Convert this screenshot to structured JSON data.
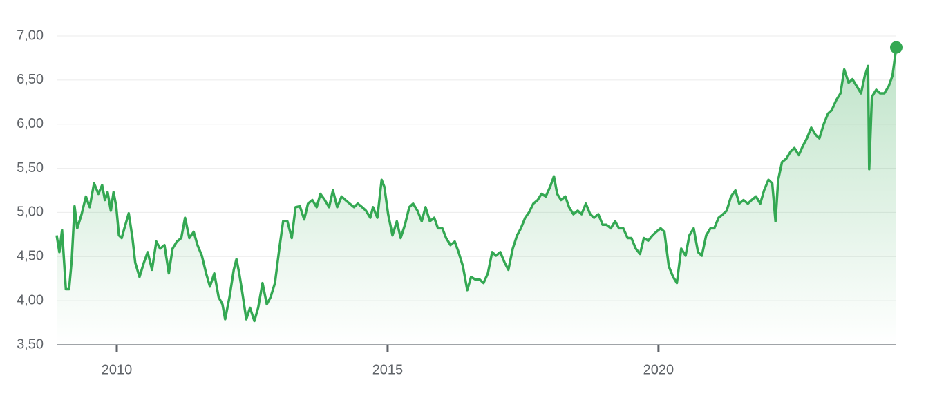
{
  "chart_data": {
    "type": "line",
    "color": "#34a853",
    "grid": true,
    "area": true,
    "xlim": [
      2008.89,
      2024.39
    ],
    "xticks": [
      2010,
      2015,
      2020
    ],
    "ylim": [
      3.5,
      7
    ],
    "yticks": [
      {
        "value": 3.5,
        "label": "3,50"
      },
      {
        "value": 4,
        "label": "4,00"
      },
      {
        "value": 4.5,
        "label": "4,50"
      },
      {
        "value": 5,
        "label": "5,00"
      },
      {
        "value": 5.5,
        "label": "5,50"
      },
      {
        "value": 6,
        "label": "6,00"
      },
      {
        "value": 6.5,
        "label": "6,50"
      },
      {
        "value": 7,
        "label": "7,00"
      }
    ],
    "x": [
      2008.89,
      2008.94,
      2008.99,
      2009.06,
      2009.12,
      2009.17,
      2009.22,
      2009.27,
      2009.35,
      2009.43,
      2009.5,
      2009.58,
      2009.66,
      2009.73,
      2009.78,
      2009.83,
      2009.89,
      2009.94,
      2009.99,
      2010.04,
      2010.09,
      2010.14,
      2010.22,
      2010.29,
      2010.34,
      2010.42,
      2010.5,
      2010.57,
      2010.65,
      2010.73,
      2010.8,
      2010.88,
      2010.96,
      2011.03,
      2011.11,
      2011.19,
      2011.26,
      2011.34,
      2011.42,
      2011.49,
      2011.57,
      2011.65,
      2011.72,
      2011.8,
      2011.88,
      2011.95,
      2012.0,
      2012.08,
      2012.16,
      2012.21,
      2012.26,
      2012.31,
      2012.39,
      2012.46,
      2012.54,
      2012.61,
      2012.69,
      2012.77,
      2012.84,
      2012.92,
      2013.0,
      2013.07,
      2013.15,
      2013.23,
      2013.3,
      2013.38,
      2013.46,
      2013.53,
      2013.61,
      2013.69,
      2013.76,
      2013.84,
      2013.92,
      2013.99,
      2014.07,
      2014.15,
      2014.22,
      2014.3,
      2014.38,
      2014.45,
      2014.53,
      2014.6,
      2014.68,
      2014.73,
      2014.81,
      2014.89,
      2014.94,
      2015.01,
      2015.09,
      2015.17,
      2015.24,
      2015.32,
      2015.4,
      2015.47,
      2015.55,
      2015.63,
      2015.7,
      2015.78,
      2015.86,
      2015.93,
      2016.01,
      2016.08,
      2016.16,
      2016.24,
      2016.31,
      2016.39,
      2016.47,
      2016.54,
      2016.62,
      2016.7,
      2016.77,
      2016.85,
      2016.93,
      2017.0,
      2017.08,
      2017.16,
      2017.23,
      2017.31,
      2017.39,
      2017.46,
      2017.54,
      2017.61,
      2017.69,
      2017.77,
      2017.84,
      2017.92,
      2018.0,
      2018.07,
      2018.13,
      2018.2,
      2018.28,
      2018.35,
      2018.43,
      2018.51,
      2018.58,
      2018.66,
      2018.74,
      2018.81,
      2018.89,
      2018.97,
      2019.04,
      2019.12,
      2019.2,
      2019.27,
      2019.35,
      2019.43,
      2019.5,
      2019.58,
      2019.66,
      2019.73,
      2019.81,
      2019.89,
      2019.96,
      2020.04,
      2020.11,
      2020.19,
      2020.27,
      2020.34,
      2020.42,
      2020.5,
      2020.57,
      2020.65,
      2020.73,
      2020.8,
      2020.88,
      2020.96,
      2021.03,
      2021.11,
      2021.19,
      2021.26,
      2021.34,
      2021.42,
      2021.49,
      2021.57,
      2021.65,
      2021.72,
      2021.8,
      2021.88,
      2021.95,
      2022.03,
      2022.1,
      2022.16,
      2022.21,
      2022.28,
      2022.36,
      2022.44,
      2022.51,
      2022.59,
      2022.67,
      2022.74,
      2022.82,
      2022.9,
      2022.97,
      2023.05,
      2023.13,
      2023.2,
      2023.28,
      2023.36,
      2023.43,
      2023.51,
      2023.58,
      2023.66,
      2023.74,
      2023.81,
      2023.87,
      2023.89,
      2023.94,
      2024.02,
      2024.09,
      2024.17,
      2024.25,
      2024.32,
      2024.39
    ],
    "values": [
      4.74,
      4.55,
      4.8,
      4.13,
      4.13,
      4.47,
      5.07,
      4.82,
      4.98,
      5.18,
      5.06,
      5.33,
      5.21,
      5.31,
      5.14,
      5.23,
      5.02,
      5.23,
      5.07,
      4.74,
      4.71,
      4.82,
      4.99,
      4.71,
      4.43,
      4.27,
      4.43,
      4.55,
      4.35,
      4.67,
      4.59,
      4.63,
      4.31,
      4.59,
      4.67,
      4.71,
      4.94,
      4.71,
      4.78,
      4.63,
      4.51,
      4.31,
      4.16,
      4.31,
      4.04,
      3.96,
      3.79,
      4.04,
      4.35,
      4.47,
      4.31,
      4.12,
      3.79,
      3.92,
      3.77,
      3.92,
      4.2,
      3.96,
      4.04,
      4.2,
      4.59,
      4.9,
      4.9,
      4.71,
      5.06,
      5.07,
      4.92,
      5.1,
      5.14,
      5.06,
      5.21,
      5.14,
      5.06,
      5.25,
      5.06,
      5.18,
      5.14,
      5.1,
      5.06,
      5.1,
      5.06,
      5.02,
      4.94,
      5.06,
      4.94,
      5.37,
      5.29,
      4.98,
      4.74,
      4.9,
      4.71,
      4.86,
      5.06,
      5.1,
      5.02,
      4.9,
      5.06,
      4.9,
      4.94,
      4.82,
      4.82,
      4.71,
      4.63,
      4.67,
      4.55,
      4.39,
      4.12,
      4.27,
      4.24,
      4.24,
      4.2,
      4.31,
      4.55,
      4.51,
      4.55,
      4.43,
      4.35,
      4.59,
      4.74,
      4.82,
      4.94,
      5.0,
      5.1,
      5.14,
      5.21,
      5.18,
      5.29,
      5.41,
      5.21,
      5.14,
      5.18,
      5.06,
      4.98,
      5.02,
      4.98,
      5.1,
      4.98,
      4.94,
      4.98,
      4.86,
      4.86,
      4.82,
      4.9,
      4.82,
      4.82,
      4.71,
      4.71,
      4.59,
      4.53,
      4.71,
      4.68,
      4.74,
      4.78,
      4.82,
      4.78,
      4.39,
      4.27,
      4.2,
      4.59,
      4.51,
      4.74,
      4.82,
      4.55,
      4.51,
      4.74,
      4.82,
      4.82,
      4.94,
      4.98,
      5.02,
      5.18,
      5.25,
      5.1,
      5.14,
      5.1,
      5.14,
      5.18,
      5.1,
      5.25,
      5.37,
      5.33,
      4.9,
      5.37,
      5.57,
      5.61,
      5.69,
      5.73,
      5.65,
      5.76,
      5.84,
      5.96,
      5.88,
      5.84,
      6.0,
      6.12,
      6.16,
      6.27,
      6.35,
      6.62,
      6.47,
      6.51,
      6.43,
      6.35,
      6.55,
      6.66,
      5.49,
      6.31,
      6.39,
      6.35,
      6.35,
      6.43,
      6.55,
      6.87
    ]
  }
}
